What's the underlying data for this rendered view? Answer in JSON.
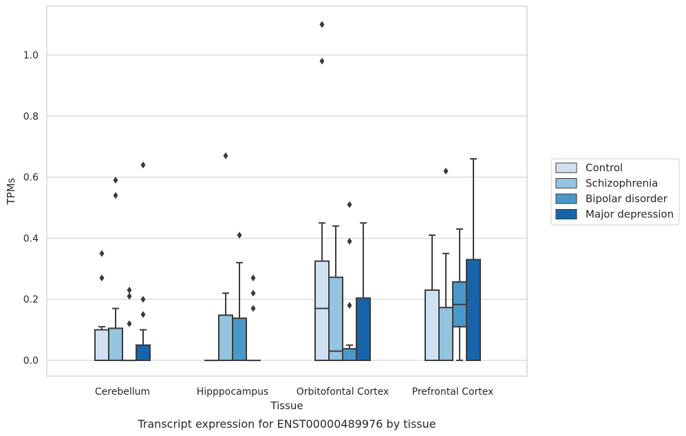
{
  "chart_data": {
    "type": "box",
    "title": "",
    "caption": "Transcript expression for ENST00000489976 by tissue",
    "xlabel": "Tissue",
    "ylabel": "TPMs",
    "ylim": [
      -0.05,
      1.16
    ],
    "yticks": [
      "0.0",
      "0.2",
      "0.4",
      "0.6",
      "0.8",
      "1.0"
    ],
    "grid": true,
    "legend_placement": "right",
    "categories": [
      "Cerebellum",
      "Hipppocampus",
      "Orbitofontal Cortex",
      "Prefrontal Cortex"
    ],
    "series": [
      {
        "name": "Control",
        "color": "#d0e1f2",
        "boxes": [
          {
            "q1": 0.0,
            "median": 0.0,
            "q3": 0.1,
            "whisker_low": 0.0,
            "whisker_high": 0.11,
            "outliers": [
              0.27,
              0.35
            ]
          },
          {
            "q1": 0.0,
            "median": 0.0,
            "q3": 0.0,
            "whisker_low": 0.0,
            "whisker_high": 0.0,
            "outliers": []
          },
          {
            "q1": 0.0,
            "median": 0.17,
            "q3": 0.325,
            "whisker_low": 0.0,
            "whisker_high": 0.45,
            "outliers": [
              0.98,
              1.1
            ]
          },
          {
            "q1": 0.0,
            "median": 0.0,
            "q3": 0.23,
            "whisker_low": 0.0,
            "whisker_high": 0.41,
            "outliers": []
          }
        ]
      },
      {
        "name": "Schizophrenia",
        "color": "#94c4df",
        "boxes": [
          {
            "q1": 0.0,
            "median": 0.0,
            "q3": 0.105,
            "whisker_low": 0.0,
            "whisker_high": 0.17,
            "outliers": [
              0.54,
              0.59
            ]
          },
          {
            "q1": 0.0,
            "median": 0.0,
            "q3": 0.148,
            "whisker_low": 0.0,
            "whisker_high": 0.22,
            "outliers": [
              0.67
            ]
          },
          {
            "q1": 0.0,
            "median": 0.03,
            "q3": 0.272,
            "whisker_low": 0.0,
            "whisker_high": 0.44,
            "outliers": []
          },
          {
            "q1": 0.0,
            "median": 0.0,
            "q3": 0.173,
            "whisker_low": 0.0,
            "whisker_high": 0.35,
            "outliers": [
              0.62
            ]
          }
        ]
      },
      {
        "name": "Bipolar disorder",
        "color": "#4a98c9",
        "boxes": [
          {
            "q1": 0.0,
            "median": 0.0,
            "q3": 0.0,
            "whisker_low": 0.0,
            "whisker_high": 0.0,
            "outliers": [
              0.12,
              0.21,
              0.23
            ]
          },
          {
            "q1": 0.0,
            "median": 0.0,
            "q3": 0.138,
            "whisker_low": 0.0,
            "whisker_high": 0.32,
            "outliers": [
              0.41
            ]
          },
          {
            "q1": 0.0,
            "median": 0.0,
            "q3": 0.038,
            "whisker_low": 0.0,
            "whisker_high": 0.05,
            "outliers": [
              0.18,
              0.39,
              0.51
            ]
          },
          {
            "q1": 0.11,
            "median": 0.183,
            "q3": 0.257,
            "whisker_low": 0.0,
            "whisker_high": 0.43,
            "outliers": []
          }
        ]
      },
      {
        "name": "Major depression",
        "color": "#1764ab",
        "boxes": [
          {
            "q1": 0.0,
            "median": 0.0,
            "q3": 0.05,
            "whisker_low": 0.0,
            "whisker_high": 0.1,
            "outliers": [
              0.15,
              0.2,
              0.64
            ]
          },
          {
            "q1": 0.0,
            "median": 0.0,
            "q3": 0.0,
            "whisker_low": 0.0,
            "whisker_high": 0.0,
            "outliers": [
              0.17,
              0.22,
              0.27
            ]
          },
          {
            "q1": 0.0,
            "median": 0.0,
            "q3": 0.204,
            "whisker_low": 0.0,
            "whisker_high": 0.45,
            "outliers": []
          },
          {
            "q1": 0.0,
            "median": 0.0,
            "q3": 0.33,
            "whisker_low": 0.0,
            "whisker_high": 0.66,
            "outliers": []
          }
        ]
      }
    ]
  }
}
